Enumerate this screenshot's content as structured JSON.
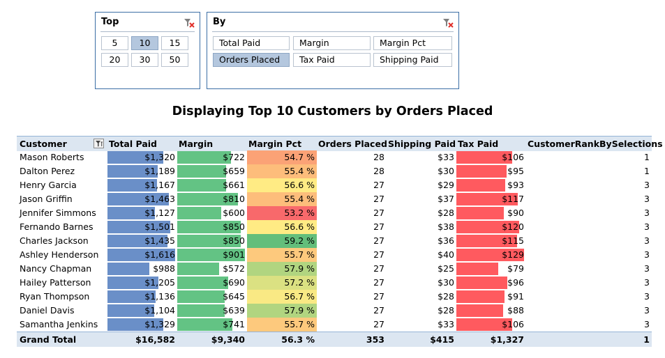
{
  "slicer_top": {
    "title": "Top",
    "buttons": [
      "5",
      "10",
      "15",
      "20",
      "30",
      "50"
    ],
    "selected": "10"
  },
  "slicer_by": {
    "title": "By",
    "buttons": [
      "Total Paid",
      "Margin",
      "Margin Pct",
      "Orders Placed",
      "Tax Paid",
      "Shipping Paid"
    ],
    "selected": "Orders Placed"
  },
  "title": "Displaying Top 10 Customers by Orders Placed",
  "table": {
    "headers": [
      "Customer",
      "Total Paid",
      "Margin",
      "Margin Pct",
      "Orders Placed",
      "Shipping Paid",
      "Tax Paid",
      "CustomerRankBySelections"
    ],
    "rows": [
      {
        "customer": "Mason Roberts",
        "total_paid": "$1,320",
        "margin": "$722",
        "margin_pct": "54.7 %",
        "orders": "28",
        "shipping": "$33",
        "tax": "$106",
        "rank": "1",
        "tp": 1320,
        "m": 722,
        "mp": 54.7,
        "tx": 106
      },
      {
        "customer": "Dalton Perez",
        "total_paid": "$1,189",
        "margin": "$659",
        "margin_pct": "55.4 %",
        "orders": "28",
        "shipping": "$30",
        "tax": "$95",
        "rank": "1",
        "tp": 1189,
        "m": 659,
        "mp": 55.4,
        "tx": 95
      },
      {
        "customer": "Henry Garcia",
        "total_paid": "$1,167",
        "margin": "$661",
        "margin_pct": "56.6 %",
        "orders": "27",
        "shipping": "$29",
        "tax": "$93",
        "rank": "3",
        "tp": 1167,
        "m": 661,
        "mp": 56.6,
        "tx": 93
      },
      {
        "customer": "Jason Griffin",
        "total_paid": "$1,463",
        "margin": "$810",
        "margin_pct": "55.4 %",
        "orders": "27",
        "shipping": "$37",
        "tax": "$117",
        "rank": "3",
        "tp": 1463,
        "m": 810,
        "mp": 55.4,
        "tx": 117
      },
      {
        "customer": "Jennifer Simmons",
        "total_paid": "$1,127",
        "margin": "$600",
        "margin_pct": "53.2 %",
        "orders": "27",
        "shipping": "$28",
        "tax": "$90",
        "rank": "3",
        "tp": 1127,
        "m": 600,
        "mp": 53.2,
        "tx": 90
      },
      {
        "customer": "Fernando Barnes",
        "total_paid": "$1,501",
        "margin": "$850",
        "margin_pct": "56.6 %",
        "orders": "27",
        "shipping": "$38",
        "tax": "$120",
        "rank": "3",
        "tp": 1501,
        "m": 850,
        "mp": 56.6,
        "tx": 120
      },
      {
        "customer": "Charles Jackson",
        "total_paid": "$1,435",
        "margin": "$850",
        "margin_pct": "59.2 %",
        "orders": "27",
        "shipping": "$36",
        "tax": "$115",
        "rank": "3",
        "tp": 1435,
        "m": 850,
        "mp": 59.2,
        "tx": 115
      },
      {
        "customer": "Ashley Henderson",
        "total_paid": "$1,616",
        "margin": "$901",
        "margin_pct": "55.7 %",
        "orders": "27",
        "shipping": "$40",
        "tax": "$129",
        "rank": "3",
        "tp": 1616,
        "m": 901,
        "mp": 55.7,
        "tx": 129
      },
      {
        "customer": "Nancy Chapman",
        "total_paid": "$988",
        "margin": "$572",
        "margin_pct": "57.9 %",
        "orders": "27",
        "shipping": "$25",
        "tax": "$79",
        "rank": "3",
        "tp": 988,
        "m": 572,
        "mp": 57.9,
        "tx": 79
      },
      {
        "customer": "Hailey Patterson",
        "total_paid": "$1,205",
        "margin": "$690",
        "margin_pct": "57.2 %",
        "orders": "27",
        "shipping": "$30",
        "tax": "$96",
        "rank": "3",
        "tp": 1205,
        "m": 690,
        "mp": 57.2,
        "tx": 96
      },
      {
        "customer": "Ryan Thompson",
        "total_paid": "$1,136",
        "margin": "$645",
        "margin_pct": "56.7 %",
        "orders": "27",
        "shipping": "$28",
        "tax": "$91",
        "rank": "3",
        "tp": 1136,
        "m": 645,
        "mp": 56.7,
        "tx": 91
      },
      {
        "customer": "Daniel Davis",
        "total_paid": "$1,104",
        "margin": "$639",
        "margin_pct": "57.9 %",
        "orders": "27",
        "shipping": "$28",
        "tax": "$88",
        "rank": "3",
        "tp": 1104,
        "m": 639,
        "mp": 57.9,
        "tx": 88
      },
      {
        "customer": "Samantha Jenkins",
        "total_paid": "$1,329",
        "margin": "$741",
        "margin_pct": "55.7 %",
        "orders": "27",
        "shipping": "$33",
        "tax": "$106",
        "rank": "3",
        "tp": 1329,
        "m": 741,
        "mp": 55.7,
        "tx": 106
      }
    ],
    "grand_total": {
      "label": "Grand Total",
      "total_paid": "$16,582",
      "margin": "$9,340",
      "margin_pct": "56.3 %",
      "orders": "353",
      "shipping": "$415",
      "tax": "$1,327",
      "rank": "1"
    }
  },
  "colors": {
    "total_paid_bar": "#6a8fc8",
    "margin_bar": "#63c384",
    "tax_bar": "#ff5a5f",
    "scale_low": "#f8696b",
    "scale_mid": "#ffeb84",
    "scale_high": "#63be7b",
    "header_fill": "#dce6f1",
    "selected_button": "#b4c7de"
  },
  "icons": {
    "slicer_clear": "clear-filter-icon",
    "column_filter": "filter-icon"
  }
}
